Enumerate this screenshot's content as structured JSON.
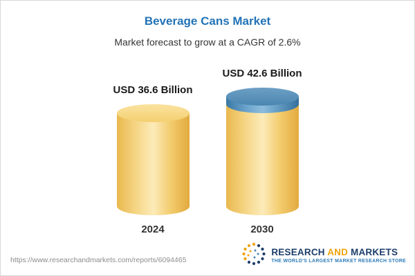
{
  "header": {
    "title": "Beverage Cans Market",
    "subtitle": "Market forecast to grow at a CAGR of 2.6%"
  },
  "chart_data": {
    "type": "bar",
    "title": "Beverage Cans Market",
    "subtitle": "Market forecast to grow at a CAGR of 2.6%",
    "categories": [
      "2024",
      "2030"
    ],
    "values": [
      36.6,
      42.6
    ],
    "value_labels": [
      "USD 36.6 Billion",
      "USD 42.6 Billion"
    ],
    "unit": "USD Billion",
    "cagr_percent": 2.6,
    "notes": "Cylinder bars; 2030 bar growth segment above 2024 level shown in blue",
    "colors": {
      "bar_fill": "#f5cf6e",
      "growth_fill": "#4a86b5",
      "title_text": "#2273b8"
    },
    "legend": "none",
    "grid": false
  },
  "footer": {
    "url": "https://www.researchandmarkets.com/reports/6094465",
    "logo": {
      "word1": "RESEARCH",
      "word2": "AND",
      "word3": "MARKETS",
      "tagline": "THE WORLD'S LARGEST MARKET RESEARCH STORE"
    }
  }
}
